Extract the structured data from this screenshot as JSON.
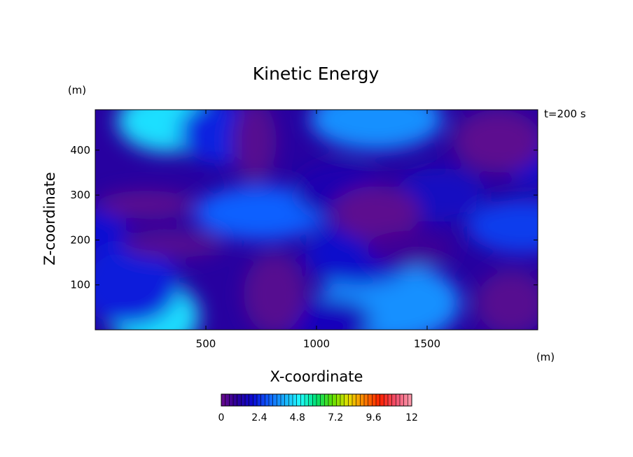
{
  "chart_data": {
    "type": "heatmap",
    "title": "Kinetic Energy",
    "xlabel": "X-coordinate",
    "ylabel": "Z-coordinate",
    "x_unit": "(m)",
    "y_unit": "(m)",
    "time_label": "t=200 s",
    "xlim": [
      0,
      2000
    ],
    "ylim": [
      0,
      490
    ],
    "x_ticks": [
      500,
      1000,
      1500
    ],
    "y_ticks": [
      100,
      200,
      300,
      400
    ],
    "colorbar": {
      "range": [
        0,
        12
      ],
      "tick_values": [
        0,
        2.4,
        4.8,
        7.2,
        9.6,
        12
      ],
      "tick_labels": [
        "0",
        "2.4",
        "4.8",
        "7.2",
        "9.6",
        "12"
      ],
      "colors": [
        "#6a0a8c",
        "#2a009a",
        "#0a0ad2",
        "#1060ff",
        "#18b0ff",
        "#20ffff",
        "#00e070",
        "#60e000",
        "#e8e000",
        "#ff8000",
        "#ff2000",
        "#f05070",
        "#ff9fb0"
      ]
    },
    "features": [
      {
        "x": 330,
        "z": 465,
        "value": 4.6,
        "rx": 230,
        "rz": 70
      },
      {
        "x": 270,
        "z": 30,
        "value": 4.6,
        "rx": 200,
        "rz": 80
      },
      {
        "x": 560,
        "z": 440,
        "value": 2.3,
        "rx": 180,
        "rz": 70
      },
      {
        "x": 20,
        "z": 220,
        "value": 2.0,
        "rx": 120,
        "rz": 50
      },
      {
        "x": 150,
        "z": 100,
        "value": 2.2,
        "rx": 230,
        "rz": 90
      },
      {
        "x": 750,
        "z": 260,
        "value": 3.0,
        "rx": 300,
        "rz": 60
      },
      {
        "x": 1270,
        "z": 470,
        "value": 3.6,
        "rx": 300,
        "rz": 70
      },
      {
        "x": 1330,
        "z": 60,
        "value": 3.6,
        "rx": 320,
        "rz": 90
      },
      {
        "x": 1200,
        "z": 170,
        "value": 1.9,
        "rx": 250,
        "rz": 70
      },
      {
        "x": 1930,
        "z": 230,
        "value": 2.6,
        "rx": 250,
        "rz": 60
      },
      {
        "x": 1980,
        "z": 380,
        "value": 1.9,
        "rx": 130,
        "rz": 60
      },
      {
        "x": 1560,
        "z": 300,
        "value": 1.7,
        "rx": 200,
        "rz": 60
      },
      {
        "x": 1050,
        "z": 20,
        "value": 1.6,
        "rx": 200,
        "rz": 50
      },
      {
        "x": 1100,
        "z": 310,
        "value": 1.4,
        "rx": 200,
        "rz": 60
      },
      {
        "x": 230,
        "z": 280,
        "value": 0.2,
        "rx": 220,
        "rz": 30
      },
      {
        "x": 350,
        "z": 190,
        "value": 0.3,
        "rx": 230,
        "rz": 30
      },
      {
        "x": 720,
        "z": 420,
        "value": 0.3,
        "rx": 100,
        "rz": 90
      },
      {
        "x": 810,
        "z": 80,
        "value": 0.3,
        "rx": 140,
        "rz": 90
      },
      {
        "x": 1270,
        "z": 260,
        "value": 0.2,
        "rx": 200,
        "rz": 60
      },
      {
        "x": 1820,
        "z": 420,
        "value": 0.2,
        "rx": 200,
        "rz": 70
      },
      {
        "x": 1880,
        "z": 60,
        "value": 0.3,
        "rx": 160,
        "rz": 70
      },
      {
        "x": 1420,
        "z": 180,
        "value": 0.7,
        "rx": 200,
        "rz": 40
      }
    ]
  }
}
